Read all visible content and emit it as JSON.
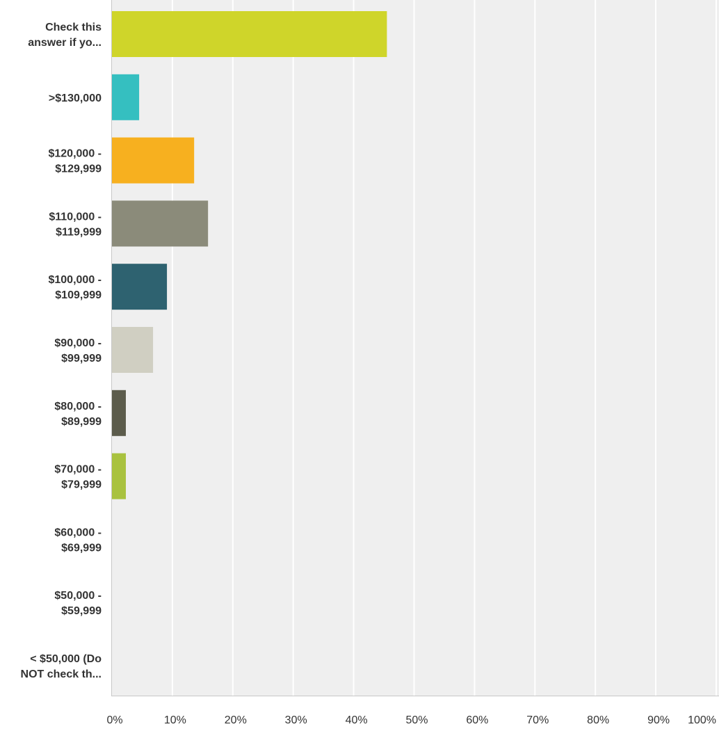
{
  "chart_data": {
    "type": "bar",
    "orientation": "horizontal",
    "categories": [
      [
        "Check this",
        "answer if yo..."
      ],
      [
        ">$130,000"
      ],
      [
        "$120,000 -",
        "$129,999"
      ],
      [
        "$110,000 -",
        "$119,999"
      ],
      [
        "$100,000 -",
        "$109,999"
      ],
      [
        "$90,000 -",
        "$99,999"
      ],
      [
        "$80,000 -",
        "$89,999"
      ],
      [
        "$70,000 -",
        "$79,999"
      ],
      [
        "$60,000 -",
        "$69,999"
      ],
      [
        "$50,000 -",
        "$59,999"
      ],
      [
        "< $50,000 (Do",
        "NOT check th..."
      ]
    ],
    "values": [
      45.5,
      4.5,
      13.6,
      15.9,
      9.1,
      6.8,
      2.3,
      2.3,
      0,
      0,
      0
    ],
    "colors": [
      "#cfd52a",
      "#35bfc0",
      "#f7b01f",
      "#8b8b7a",
      "#2e6270",
      "#d0cfc2",
      "#5c5c4c",
      "#a9c23f",
      "#999999",
      "#999999",
      "#999999"
    ],
    "xlim": [
      0,
      100
    ],
    "ticks": [
      "0%",
      "10%",
      "20%",
      "30%",
      "40%",
      "50%",
      "60%",
      "70%",
      "80%",
      "90%",
      "100%"
    ],
    "grid": true,
    "plot_background": "#efefef",
    "grid_color": "#ffffff",
    "label_color": "#333333"
  }
}
